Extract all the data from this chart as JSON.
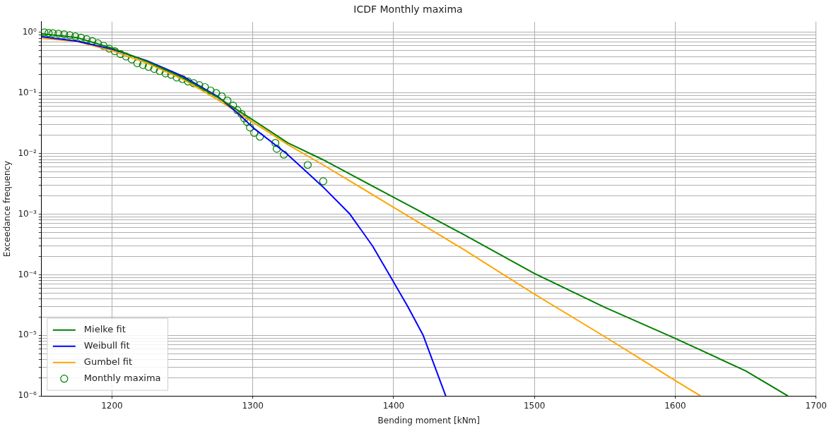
{
  "chart_data": {
    "type": "line",
    "title": "ICDF Monthly maxima",
    "xlabel": "Bending moment [kNm]",
    "ylabel": "Exceedance frequency",
    "log": "y",
    "grid": true,
    "legend": "bottom left",
    "xlim": [
      1150,
      1700
    ],
    "xticks": [
      1200,
      1300,
      1400,
      1500,
      1600,
      1700
    ],
    "ylim": [
      1e-06,
      1.5
    ],
    "yticks": [
      {
        "value": 1,
        "label": "10⁰"
      },
      {
        "value": 0.1,
        "label": "10⁻¹"
      },
      {
        "value": 0.01,
        "label": "10⁻²"
      },
      {
        "value": 0.001,
        "label": "10⁻³"
      },
      {
        "value": 0.0001,
        "label": "10⁻⁴"
      },
      {
        "value": 1e-05,
        "label": "10⁻⁵"
      },
      {
        "value": 1e-06,
        "label": "10⁻⁶"
      },
      {
        "value": 0.9,
        "label": null
      },
      {
        "value": 0.8,
        "label": null
      },
      {
        "value": 0.7,
        "label": null
      },
      {
        "value": 0.6,
        "label": null
      },
      {
        "value": 0.5,
        "label": null
      },
      {
        "value": 0.4,
        "label": null
      },
      {
        "value": 0.3,
        "label": null
      },
      {
        "value": 0.2,
        "label": null
      },
      {
        "value": 0.09,
        "label": null
      },
      {
        "value": 0.08,
        "label": null
      },
      {
        "value": 0.07,
        "label": null
      },
      {
        "value": 0.06,
        "label": null
      },
      {
        "value": 0.05,
        "label": null
      },
      {
        "value": 0.04,
        "label": null
      },
      {
        "value": 0.03,
        "label": null
      },
      {
        "value": 0.02,
        "label": null
      },
      {
        "value": 0.009,
        "label": null
      },
      {
        "value": 0.008,
        "label": null
      },
      {
        "value": 0.007,
        "label": null
      },
      {
        "value": 0.006,
        "label": null
      },
      {
        "value": 0.005,
        "label": null
      },
      {
        "value": 0.004,
        "label": null
      },
      {
        "value": 0.003,
        "label": null
      },
      {
        "value": 0.002,
        "label": null
      },
      {
        "value": 0.0009,
        "label": null
      },
      {
        "value": 0.0008,
        "label": null
      },
      {
        "value": 0.0007,
        "label": null
      },
      {
        "value": 0.0006,
        "label": null
      },
      {
        "value": 0.0005,
        "label": null
      },
      {
        "value": 0.0004,
        "label": null
      },
      {
        "value": 0.0003,
        "label": null
      },
      {
        "value": 0.0002,
        "label": null
      },
      {
        "value": 9e-05,
        "label": null
      },
      {
        "value": 8e-05,
        "label": null
      },
      {
        "value": 7e-05,
        "label": null
      },
      {
        "value": 6e-05,
        "label": null
      },
      {
        "value": 5e-05,
        "label": null
      },
      {
        "value": 4e-05,
        "label": null
      },
      {
        "value": 3e-05,
        "label": null
      },
      {
        "value": 2e-05,
        "label": null
      },
      {
        "value": 9e-06,
        "label": null
      },
      {
        "value": 8e-06,
        "label": null
      },
      {
        "value": 7e-06,
        "label": null
      },
      {
        "value": 6e-06,
        "label": null
      },
      {
        "value": 5e-06,
        "label": null
      },
      {
        "value": 4e-06,
        "label": null
      },
      {
        "value": 3e-06,
        "label": null
      },
      {
        "value": 2e-06,
        "label": null
      }
    ],
    "series": [
      {
        "name": "Mielke fit",
        "type": "line",
        "color": "#008000",
        "x": [
          1150,
          1175,
          1200,
          1225,
          1250,
          1275,
          1300,
          1325,
          1350,
          1400,
          1450,
          1500,
          1550,
          1600,
          1650,
          1680
        ],
        "values": [
          0.95,
          0.82,
          0.55,
          0.33,
          0.18,
          0.085,
          0.036,
          0.015,
          0.0079,
          0.0019,
          0.00046,
          0.000105,
          2.9e-05,
          8.9e-06,
          2.6e-06,
          1e-06
        ]
      },
      {
        "name": "Weibull fit",
        "type": "line",
        "color": "#0000ff",
        "x": [
          1150,
          1175,
          1200,
          1225,
          1250,
          1275,
          1290,
          1300,
          1324,
          1350,
          1369,
          1385,
          1397,
          1410,
          1421,
          1437
        ],
        "values": [
          0.85,
          0.72,
          0.53,
          0.34,
          0.19,
          0.088,
          0.045,
          0.027,
          0.01,
          0.0028,
          0.001,
          0.0003,
          0.0001,
          3e-05,
          1e-05,
          1e-06
        ]
      },
      {
        "name": "Gumbel fit",
        "type": "line",
        "color": "#ffa500",
        "x": [
          1150,
          1175,
          1200,
          1225,
          1250,
          1275,
          1300,
          1325,
          1350,
          1400,
          1450,
          1500,
          1550,
          1600,
          1618
        ],
        "values": [
          0.8,
          0.71,
          0.5,
          0.31,
          0.17,
          0.078,
          0.033,
          0.014,
          0.0065,
          0.0013,
          0.00026,
          4.8e-05,
          9.5e-06,
          1.8e-06,
          1e-06
        ]
      },
      {
        "name": "Monthly maxima",
        "type": "scatter",
        "marker": "circle",
        "color": "#008000",
        "x": [
          1152,
          1155,
          1158,
          1162,
          1166,
          1170,
          1174,
          1178,
          1182,
          1186,
          1190,
          1194,
          1198,
          1202,
          1206,
          1210,
          1214,
          1218,
          1222,
          1226,
          1230,
          1234,
          1238,
          1242,
          1246,
          1250,
          1254,
          1258,
          1262,
          1266,
          1270,
          1274,
          1278,
          1282,
          1286,
          1289,
          1292,
          1294,
          1296,
          1298,
          1301,
          1305,
          1316,
          1317,
          1322,
          1339,
          1350
        ],
        "values": [
          1.0,
          0.98,
          0.97,
          0.95,
          0.93,
          0.9,
          0.86,
          0.82,
          0.77,
          0.72,
          0.66,
          0.6,
          0.54,
          0.49,
          0.44,
          0.4,
          0.36,
          0.31,
          0.29,
          0.27,
          0.25,
          0.23,
          0.21,
          0.2,
          0.18,
          0.17,
          0.155,
          0.145,
          0.135,
          0.125,
          0.11,
          0.1,
          0.088,
          0.075,
          0.062,
          0.052,
          0.045,
          0.038,
          0.033,
          0.027,
          0.022,
          0.019,
          0.015,
          0.012,
          0.0096,
          0.0065,
          0.0035
        ]
      }
    ]
  }
}
